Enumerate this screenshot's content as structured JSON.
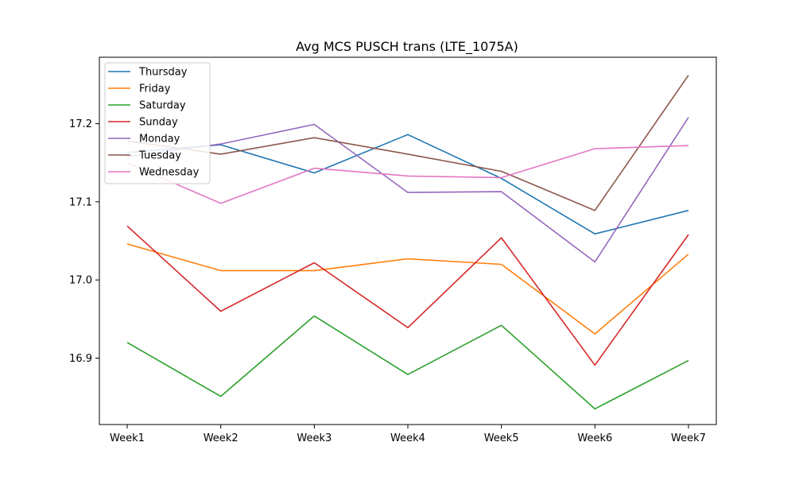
{
  "chart_data": {
    "type": "line",
    "title": "Avg MCS PUSCH trans (LTE_1075A)",
    "xlabel": "",
    "ylabel": "",
    "categories": [
      "Week1",
      "Week2",
      "Week3",
      "Week4",
      "Week5",
      "Week6",
      "Week7"
    ],
    "ylim": [
      16.815,
      17.285
    ],
    "yticks": [
      16.9,
      17.0,
      17.1,
      17.2
    ],
    "grid": false,
    "legend_position": "top-left",
    "series": [
      {
        "name": "Thursday",
        "color": "#1f77b4",
        "values": [
          17.163,
          17.173,
          17.137,
          17.186,
          17.13,
          17.059,
          17.089
        ]
      },
      {
        "name": "Friday",
        "color": "#ff7f0e",
        "values": [
          17.046,
          17.012,
          17.012,
          17.027,
          17.02,
          16.931,
          17.033
        ]
      },
      {
        "name": "Saturday",
        "color": "#2ca02c",
        "values": [
          16.92,
          16.851,
          16.954,
          16.879,
          16.942,
          16.835,
          16.897
        ]
      },
      {
        "name": "Sunday",
        "color": "#d62728",
        "values": [
          17.069,
          16.96,
          17.022,
          16.939,
          17.054,
          16.891,
          17.058
        ]
      },
      {
        "name": "Monday",
        "color": "#9467bd",
        "values": [
          17.158,
          17.174,
          17.199,
          17.112,
          17.113,
          17.023,
          17.208
        ]
      },
      {
        "name": "Tuesday",
        "color": "#8c564b",
        "values": [
          17.178,
          17.161,
          17.182,
          17.161,
          17.139,
          17.089,
          17.262
        ]
      },
      {
        "name": "Wednesday",
        "color": "#e377c2",
        "values": [
          17.15,
          17.098,
          17.143,
          17.133,
          17.131,
          17.168,
          17.172
        ]
      }
    ]
  }
}
